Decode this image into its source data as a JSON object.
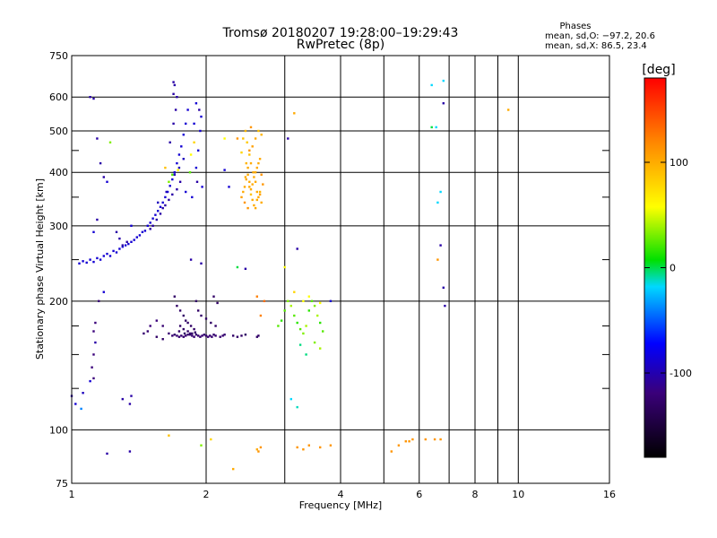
{
  "chart_data": {
    "type": "scatter",
    "title": "Tromsø 20180207 19:28:00–19:29:43",
    "subtitle": "RwPretec (8p)",
    "phase_block": {
      "title": "Phases",
      "line1": "mean, sd,O: −97.2, 20.6",
      "line2": "mean, sd,X:  86.5, 23.4"
    },
    "xlabel": "Frequency [MHz]",
    "ylabel": "Stationary phase Virtual Height [km]",
    "x_scale": "log",
    "y_scale": "log",
    "xlim": [
      1,
      16
    ],
    "ylim": [
      75,
      750
    ],
    "grid": true,
    "x_ticks": [
      1,
      2,
      4,
      6,
      8,
      10,
      16
    ],
    "x_minor_grid": [
      3,
      5,
      7,
      9
    ],
    "y_ticks": [
      75,
      100,
      200,
      300,
      400,
      500,
      600,
      750
    ],
    "y_minor_grid": [
      125,
      150,
      175,
      250,
      350,
      450
    ],
    "colorbar": {
      "label": "[deg]",
      "range": [
        -180,
        180
      ],
      "ticks": [
        -100,
        0,
        100
      ]
    },
    "points": [
      [
        1.0,
        120,
        -110
      ],
      [
        1.02,
        115,
        -100
      ],
      [
        1.06,
        122,
        -105
      ],
      [
        1.05,
        112,
        -60
      ],
      [
        1.1,
        130,
        -100
      ],
      [
        1.04,
        245,
        -100
      ],
      [
        1.06,
        248,
        -100
      ],
      [
        1.08,
        246,
        -100
      ],
      [
        1.1,
        250,
        -100
      ],
      [
        1.12,
        247,
        -100
      ],
      [
        1.14,
        252,
        -100
      ],
      [
        1.16,
        250,
        -100
      ],
      [
        1.18,
        255,
        -100
      ],
      [
        1.2,
        258,
        -100
      ],
      [
        1.22,
        255,
        -100
      ],
      [
        1.24,
        262,
        -100
      ],
      [
        1.26,
        260,
        -100
      ],
      [
        1.28,
        265,
        -100
      ],
      [
        1.3,
        268,
        -100
      ],
      [
        1.32,
        270,
        -100
      ],
      [
        1.34,
        272,
        -100
      ],
      [
        1.36,
        275,
        -100
      ],
      [
        1.38,
        278,
        -100
      ],
      [
        1.4,
        282,
        -100
      ],
      [
        1.42,
        285,
        -100
      ],
      [
        1.44,
        290,
        -100
      ],
      [
        1.46,
        292,
        -100
      ],
      [
        1.48,
        300,
        -100
      ],
      [
        1.5,
        305,
        -100
      ],
      [
        1.52,
        312,
        -100
      ],
      [
        1.54,
        318,
        -100
      ],
      [
        1.56,
        325,
        -100
      ],
      [
        1.58,
        332,
        -100
      ],
      [
        1.6,
        340,
        -100
      ],
      [
        1.62,
        350,
        -100
      ],
      [
        1.64,
        360,
        -100
      ],
      [
        1.66,
        372,
        -100
      ],
      [
        1.68,
        385,
        -100
      ],
      [
        1.7,
        400,
        -100
      ],
      [
        1.72,
        420,
        -100
      ],
      [
        1.74,
        440,
        -100
      ],
      [
        1.76,
        460,
        -100
      ],
      [
        1.78,
        490,
        -100
      ],
      [
        1.8,
        520,
        -100
      ],
      [
        1.82,
        560,
        -100
      ],
      [
        1.52,
        300,
        -110
      ],
      [
        1.55,
        310,
        -110
      ],
      [
        1.58,
        320,
        -110
      ],
      [
        1.62,
        335,
        -110
      ],
      [
        1.65,
        345,
        -110
      ],
      [
        1.68,
        355,
        -110
      ],
      [
        1.72,
        365,
        -110
      ],
      [
        1.75,
        380,
        -110
      ],
      [
        1.5,
        295,
        -110
      ],
      [
        1.6,
        330,
        -110
      ],
      [
        1.56,
        340,
        -105
      ],
      [
        1.63,
        360,
        -105
      ],
      [
        1.7,
        395,
        -105
      ],
      [
        1.74,
        410,
        -105
      ],
      [
        1.78,
        430,
        -105
      ],
      [
        1.66,
        470,
        -110
      ],
      [
        1.69,
        520,
        -110
      ],
      [
        1.71,
        560,
        -110
      ],
      [
        1.72,
        600,
        -110
      ],
      [
        1.69,
        610,
        -110
      ],
      [
        1.7,
        640,
        -110
      ],
      [
        1.69,
        650,
        -110
      ],
      [
        1.65,
        380,
        30
      ],
      [
        1.68,
        395,
        20
      ],
      [
        1.73,
        405,
        60
      ],
      [
        1.62,
        410,
        90
      ],
      [
        1.9,
        410,
        -100
      ],
      [
        1.92,
        450,
        -100
      ],
      [
        1.94,
        500,
        -100
      ],
      [
        1.95,
        540,
        -100
      ],
      [
        1.93,
        560,
        -110
      ],
      [
        1.9,
        580,
        -100
      ],
      [
        1.88,
        520,
        -100
      ],
      [
        1.91,
        380,
        -110
      ],
      [
        1.96,
        370,
        -100
      ],
      [
        1.85,
        440,
        60
      ],
      [
        1.88,
        470,
        80
      ],
      [
        1.84,
        400,
        20
      ],
      [
        1.8,
        360,
        -100
      ],
      [
        1.86,
        350,
        -100
      ],
      [
        1.1,
        600,
        -110
      ],
      [
        1.12,
        595,
        -110
      ],
      [
        1.14,
        480,
        -110
      ],
      [
        1.16,
        420,
        -110
      ],
      [
        1.18,
        390,
        -110
      ],
      [
        1.2,
        380,
        -100
      ],
      [
        1.22,
        470,
        30
      ],
      [
        1.26,
        290,
        -110
      ],
      [
        1.28,
        280,
        -110
      ],
      [
        1.3,
        270,
        -110
      ],
      [
        1.33,
        275,
        -110
      ],
      [
        1.36,
        300,
        -100
      ],
      [
        1.18,
        210,
        -100
      ],
      [
        1.14,
        310,
        -110
      ],
      [
        1.12,
        290,
        -100
      ],
      [
        1.15,
        200,
        -120
      ],
      [
        1.13,
        178,
        -120
      ],
      [
        1.12,
        170,
        -120
      ],
      [
        1.13,
        160,
        -110
      ],
      [
        1.12,
        150,
        -120
      ],
      [
        1.11,
        140,
        -120
      ],
      [
        1.12,
        132,
        -120
      ],
      [
        1.3,
        118,
        -110
      ],
      [
        1.35,
        115,
        -110
      ],
      [
        1.36,
        120,
        -110
      ],
      [
        1.45,
        168,
        -125
      ],
      [
        1.48,
        170,
        -125
      ],
      [
        1.5,
        175,
        -120
      ],
      [
        1.55,
        180,
        -120
      ],
      [
        1.6,
        175,
        -125
      ],
      [
        1.65,
        168,
        -125
      ],
      [
        1.68,
        166,
        -125
      ],
      [
        1.7,
        167,
        -125
      ],
      [
        1.72,
        166,
        -125
      ],
      [
        1.74,
        165,
        -125
      ],
      [
        1.76,
        166,
        -125
      ],
      [
        1.78,
        165,
        -125
      ],
      [
        1.8,
        166,
        -125
      ],
      [
        1.82,
        167,
        -125
      ],
      [
        1.84,
        168,
        -125
      ],
      [
        1.86,
        166,
        -125
      ],
      [
        1.88,
        165,
        -125
      ],
      [
        1.9,
        167,
        -125
      ],
      [
        1.92,
        166,
        -125
      ],
      [
        1.94,
        165,
        -125
      ],
      [
        1.96,
        166,
        -125
      ],
      [
        1.98,
        167,
        -125
      ],
      [
        2.0,
        166,
        -125
      ],
      [
        2.02,
        165,
        -125
      ],
      [
        2.04,
        166,
        -125
      ],
      [
        2.06,
        165,
        -125
      ],
      [
        2.08,
        167,
        -125
      ],
      [
        2.1,
        166,
        -125
      ],
      [
        2.15,
        165,
        -125
      ],
      [
        2.18,
        166,
        -125
      ],
      [
        2.2,
        167,
        -125
      ],
      [
        1.7,
        205,
        -130
      ],
      [
        1.72,
        195,
        -130
      ],
      [
        1.75,
        190,
        -130
      ],
      [
        1.78,
        185,
        -130
      ],
      [
        1.8,
        180,
        -130
      ],
      [
        1.82,
        178,
        -130
      ],
      [
        1.85,
        175,
        -130
      ],
      [
        1.88,
        172,
        -130
      ],
      [
        1.9,
        200,
        -130
      ],
      [
        1.92,
        190,
        -130
      ],
      [
        1.95,
        185,
        -130
      ],
      [
        2.0,
        182,
        -130
      ],
      [
        2.05,
        178,
        -130
      ],
      [
        2.1,
        175,
        -130
      ],
      [
        2.12,
        198,
        -130
      ],
      [
        2.08,
        205,
        -130
      ],
      [
        1.75,
        175,
        -130
      ],
      [
        1.78,
        172,
        -130
      ],
      [
        1.82,
        170,
        -130
      ],
      [
        1.86,
        168,
        -130
      ],
      [
        1.74,
        170,
        -130
      ],
      [
        1.79,
        168,
        -130
      ],
      [
        1.84,
        167,
        -130
      ],
      [
        1.89,
        169,
        -130
      ],
      [
        2.3,
        166,
        -130
      ],
      [
        2.35,
        165,
        -130
      ],
      [
        2.4,
        166,
        -130
      ],
      [
        2.6,
        165,
        -130
      ],
      [
        2.62,
        166,
        -130
      ],
      [
        2.45,
        167,
        -130
      ],
      [
        1.55,
        165,
        -130
      ],
      [
        1.6,
        163,
        -130
      ],
      [
        2.45,
        238,
        -110
      ],
      [
        1.85,
        250,
        -110
      ],
      [
        1.95,
        245,
        -110
      ],
      [
        2.25,
        370,
        -100
      ],
      [
        2.2,
        405,
        -100
      ],
      [
        2.4,
        445,
        80
      ],
      [
        2.42,
        480,
        90
      ],
      [
        2.45,
        500,
        95
      ],
      [
        2.47,
        470,
        85
      ],
      [
        2.5,
        440,
        90
      ],
      [
        2.52,
        420,
        100
      ],
      [
        2.55,
        400,
        100
      ],
      [
        2.58,
        380,
        100
      ],
      [
        2.6,
        360,
        100
      ],
      [
        2.62,
        350,
        100
      ],
      [
        2.64,
        360,
        95
      ],
      [
        2.66,
        340,
        100
      ],
      [
        2.45,
        390,
        100
      ],
      [
        2.48,
        410,
        100
      ],
      [
        2.5,
        370,
        100
      ],
      [
        2.52,
        355,
        90
      ],
      [
        2.54,
        345,
        100
      ],
      [
        2.56,
        335,
        100
      ],
      [
        2.58,
        330,
        100
      ],
      [
        2.6,
        345,
        100
      ],
      [
        2.42,
        360,
        100
      ],
      [
        2.44,
        370,
        100
      ],
      [
        2.46,
        385,
        100
      ],
      [
        2.48,
        395,
        100
      ],
      [
        2.5,
        380,
        100
      ],
      [
        2.52,
        365,
        100
      ],
      [
        2.54,
        375,
        100
      ],
      [
        2.56,
        390,
        100
      ],
      [
        2.58,
        400,
        100
      ],
      [
        2.6,
        410,
        100
      ],
      [
        2.62,
        420,
        100
      ],
      [
        2.64,
        430,
        100
      ],
      [
        2.46,
        420,
        95
      ],
      [
        2.5,
        450,
        110
      ],
      [
        2.54,
        460,
        105
      ],
      [
        2.58,
        480,
        100
      ],
      [
        2.62,
        500,
        90
      ],
      [
        2.66,
        490,
        95
      ],
      [
        2.4,
        350,
        105
      ],
      [
        2.44,
        340,
        110
      ],
      [
        2.48,
        330,
        110
      ],
      [
        2.64,
        355,
        105
      ],
      [
        2.68,
        375,
        110
      ],
      [
        2.66,
        395,
        110
      ],
      [
        2.52,
        510,
        110
      ],
      [
        2.35,
        480,
        110
      ],
      [
        3.05,
        480,
        -110
      ],
      [
        3.15,
        550,
        100
      ],
      [
        2.6,
        205,
        120
      ],
      [
        2.65,
        185,
        120
      ],
      [
        2.9,
        175,
        20
      ],
      [
        2.95,
        180,
        10
      ],
      [
        3.0,
        190,
        20
      ],
      [
        3.05,
        200,
        30
      ],
      [
        3.1,
        195,
        40
      ],
      [
        3.15,
        185,
        20
      ],
      [
        3.2,
        178,
        10
      ],
      [
        3.25,
        172,
        20
      ],
      [
        3.3,
        168,
        30
      ],
      [
        3.35,
        175,
        40
      ],
      [
        3.4,
        190,
        10
      ],
      [
        3.45,
        200,
        20
      ],
      [
        3.5,
        195,
        30
      ],
      [
        3.55,
        185,
        40
      ],
      [
        3.6,
        178,
        10
      ],
      [
        3.65,
        170,
        20
      ],
      [
        3.3,
        200,
        60
      ],
      [
        3.4,
        205,
        60
      ],
      [
        3.6,
        198,
        60
      ],
      [
        3.25,
        158,
        -20
      ],
      [
        3.35,
        150,
        -20
      ],
      [
        3.5,
        160,
        30
      ],
      [
        3.6,
        155,
        40
      ],
      [
        3.2,
        265,
        -110
      ],
      [
        3.0,
        240,
        60
      ],
      [
        3.8,
        200,
        -100
      ],
      [
        3.2,
        113,
        -30
      ],
      [
        3.1,
        118,
        -40
      ],
      [
        2.35,
        240,
        -10
      ],
      [
        2.05,
        95,
        80
      ],
      [
        1.95,
        92,
        30
      ],
      [
        1.65,
        97,
        90
      ],
      [
        1.2,
        88,
        -110
      ],
      [
        1.35,
        89,
        -110
      ],
      [
        2.3,
        81,
        100
      ],
      [
        2.6,
        90,
        100
      ],
      [
        2.65,
        91,
        110
      ],
      [
        2.62,
        89,
        110
      ],
      [
        3.2,
        91,
        110
      ],
      [
        3.3,
        90,
        110
      ],
      [
        3.4,
        92,
        110
      ],
      [
        3.6,
        91,
        110
      ],
      [
        3.8,
        92,
        110
      ],
      [
        5.2,
        89,
        110
      ],
      [
        5.4,
        92,
        110
      ],
      [
        5.6,
        94,
        110
      ],
      [
        5.7,
        94,
        110
      ],
      [
        5.8,
        95,
        110
      ],
      [
        6.2,
        95,
        110
      ],
      [
        6.5,
        95,
        110
      ],
      [
        6.7,
        95,
        110
      ],
      [
        6.4,
        640,
        -40
      ],
      [
        6.8,
        655,
        -40
      ],
      [
        6.55,
        510,
        -40
      ],
      [
        6.6,
        340,
        -40
      ],
      [
        6.7,
        360,
        -40
      ],
      [
        6.8,
        580,
        -110
      ],
      [
        6.6,
        250,
        110
      ],
      [
        6.8,
        215,
        -110
      ],
      [
        6.85,
        195,
        -110
      ],
      [
        6.7,
        270,
        -110
      ],
      [
        6.4,
        510,
        -10
      ],
      [
        9.5,
        560,
        100
      ],
      [
        2.7,
        200,
        130
      ],
      [
        3.15,
        210,
        80
      ],
      [
        2.2,
        480,
        60
      ]
    ]
  }
}
